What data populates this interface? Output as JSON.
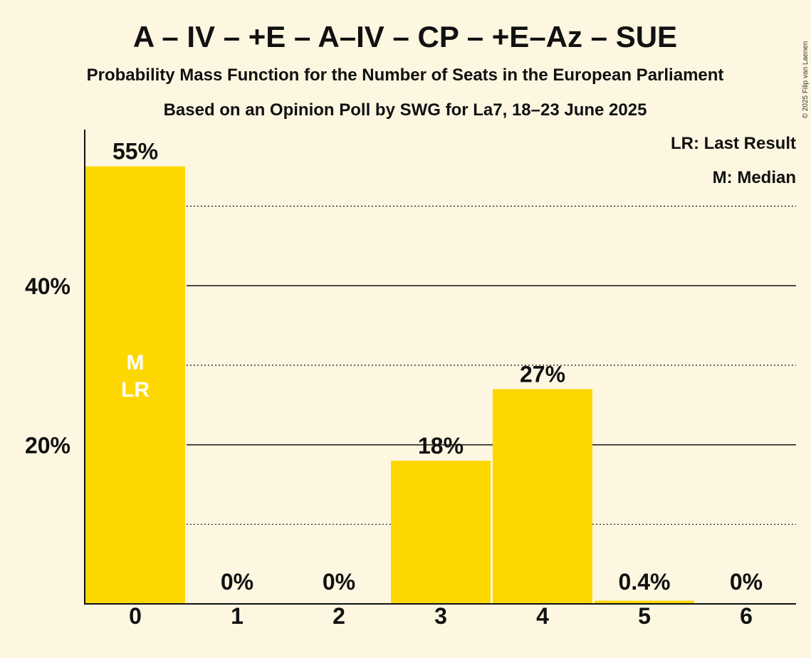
{
  "chart_data": {
    "type": "bar",
    "title": "A – IV – +E – A–IV – CP – +E–Az – SUE",
    "subtitle": "Probability Mass Function for the Number of Seats in the European Parliament",
    "subtitle2": "Based on an Opinion Poll by SWG for La7, 18–23 June 2025",
    "categories": [
      "0",
      "1",
      "2",
      "3",
      "4",
      "5",
      "6"
    ],
    "values": [
      55,
      0,
      0,
      18,
      27,
      0.4,
      0
    ],
    "data_labels": [
      "55%",
      "0%",
      "0%",
      "18%",
      "27%",
      "0.4%",
      "0%"
    ],
    "bar_annotations": {
      "0": [
        "M",
        "LR"
      ]
    },
    "ylim": [
      0,
      60
    ],
    "yticks": [
      20,
      40
    ],
    "ytick_labels": [
      "20%",
      "40%"
    ],
    "minor_gridlines": [
      10,
      30,
      50
    ],
    "legend": [
      "LR: Last Result",
      "M: Median"
    ],
    "legend_position": "top-right",
    "bar_color": "#ffd700",
    "copyright": "© 2025 Filip van Laenen"
  }
}
